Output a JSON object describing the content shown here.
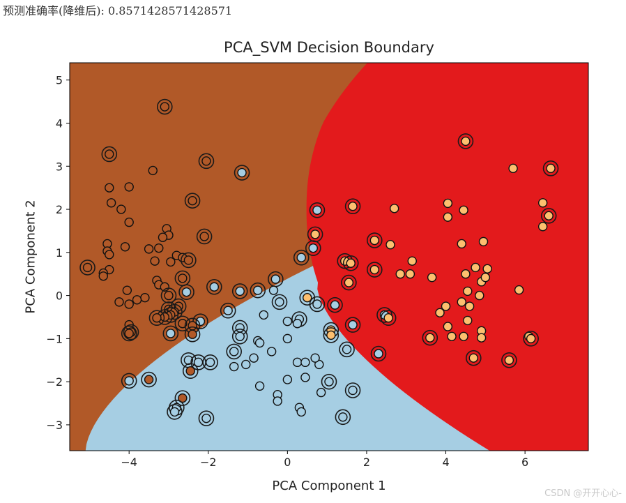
{
  "output": {
    "text": "预测准确率(降维后): 0.8571428571428571"
  },
  "watermark": {
    "text": "CSDN @开开心心-"
  },
  "chart_data": {
    "type": "scatter",
    "title": "PCA_SVM Decision Boundary",
    "xlabel": "PCA Component 1",
    "ylabel": "PCA Component 2",
    "xlim": [
      -5.5,
      7.6
    ],
    "ylim": [
      -3.6,
      5.4
    ],
    "xticks": [
      -4,
      -2,
      0,
      2,
      4,
      6
    ],
    "yticks": [
      -3,
      -2,
      -1,
      0,
      1,
      2,
      3,
      4,
      5
    ],
    "regions": [
      {
        "name": "class_0",
        "color": "#B15928"
      },
      {
        "name": "class_1",
        "color": "#A6CEE3"
      },
      {
        "name": "class_2",
        "color": "#E31A1C"
      }
    ],
    "point_colors": {
      "0": "#B15928",
      "1": "#A6CEE3",
      "2": "#FDBF6F"
    },
    "ring_color": "#1a1a1a",
    "points": [
      {
        "x": -3.1,
        "y": 4.38,
        "c": 0,
        "sv": true
      },
      {
        "x": -4.5,
        "y": 3.28,
        "c": 0,
        "sv": true
      },
      {
        "x": -3.4,
        "y": 2.9,
        "c": 0,
        "sv": false
      },
      {
        "x": -2.05,
        "y": 3.12,
        "c": 0,
        "sv": true
      },
      {
        "x": -4.5,
        "y": 2.5,
        "c": 0,
        "sv": false
      },
      {
        "x": -4.0,
        "y": 2.52,
        "c": 0,
        "sv": false
      },
      {
        "x": -2.4,
        "y": 2.2,
        "c": 0,
        "sv": true
      },
      {
        "x": -4.45,
        "y": 2.15,
        "c": 0,
        "sv": false
      },
      {
        "x": -4.2,
        "y": 2.0,
        "c": 0,
        "sv": false
      },
      {
        "x": -4.0,
        "y": 1.7,
        "c": 0,
        "sv": false
      },
      {
        "x": -3.05,
        "y": 1.55,
        "c": 0,
        "sv": false
      },
      {
        "x": -3.0,
        "y": 1.4,
        "c": 0,
        "sv": false
      },
      {
        "x": -3.15,
        "y": 1.35,
        "c": 0,
        "sv": false
      },
      {
        "x": -2.1,
        "y": 1.37,
        "c": 0,
        "sv": true
      },
      {
        "x": -4.55,
        "y": 1.2,
        "c": 0,
        "sv": false
      },
      {
        "x": -4.1,
        "y": 1.13,
        "c": 0,
        "sv": false
      },
      {
        "x": -3.5,
        "y": 1.08,
        "c": 0,
        "sv": false
      },
      {
        "x": -3.25,
        "y": 1.1,
        "c": 0,
        "sv": false
      },
      {
        "x": -4.55,
        "y": 1.03,
        "c": 0,
        "sv": false
      },
      {
        "x": -4.5,
        "y": 0.95,
        "c": 0,
        "sv": false
      },
      {
        "x": -2.8,
        "y": 0.93,
        "c": 0,
        "sv": false
      },
      {
        "x": -2.65,
        "y": 0.88,
        "c": 0,
        "sv": false
      },
      {
        "x": -2.5,
        "y": 0.82,
        "c": 0,
        "sv": true
      },
      {
        "x": -3.35,
        "y": 0.8,
        "c": 0,
        "sv": false
      },
      {
        "x": -2.95,
        "y": 0.78,
        "c": 0,
        "sv": false
      },
      {
        "x": -5.05,
        "y": 0.65,
        "c": 0,
        "sv": true
      },
      {
        "x": -4.5,
        "y": 0.6,
        "c": 0,
        "sv": false
      },
      {
        "x": -4.65,
        "y": 0.52,
        "c": 0,
        "sv": false
      },
      {
        "x": -4.65,
        "y": 0.45,
        "c": 0,
        "sv": false
      },
      {
        "x": -2.65,
        "y": 0.4,
        "c": 0,
        "sv": true
      },
      {
        "x": -3.3,
        "y": 0.35,
        "c": 0,
        "sv": false
      },
      {
        "x": -3.25,
        "y": 0.25,
        "c": 0,
        "sv": false
      },
      {
        "x": -3.1,
        "y": 0.2,
        "c": 0,
        "sv": false
      },
      {
        "x": -1.85,
        "y": 0.2,
        "c": 1,
        "sv": true
      },
      {
        "x": -4.05,
        "y": 0.12,
        "c": 0,
        "sv": false
      },
      {
        "x": -2.55,
        "y": 0.08,
        "c": 1,
        "sv": true
      },
      {
        "x": -3.0,
        "y": 0.0,
        "c": 0,
        "sv": true
      },
      {
        "x": -3.6,
        "y": -0.05,
        "c": 0,
        "sv": false
      },
      {
        "x": -3.8,
        "y": -0.1,
        "c": 0,
        "sv": false
      },
      {
        "x": -4.25,
        "y": -0.15,
        "c": 0,
        "sv": false
      },
      {
        "x": -4.0,
        "y": -0.2,
        "c": 0,
        "sv": false
      },
      {
        "x": -2.75,
        "y": -0.25,
        "c": 0,
        "sv": true
      },
      {
        "x": -3.0,
        "y": -0.32,
        "c": 0,
        "sv": true
      },
      {
        "x": -2.85,
        "y": -0.38,
        "c": 0,
        "sv": true
      },
      {
        "x": -2.95,
        "y": -0.45,
        "c": 0,
        "sv": true
      },
      {
        "x": -3.1,
        "y": -0.5,
        "c": 0,
        "sv": true
      },
      {
        "x": -3.3,
        "y": -0.52,
        "c": 0,
        "sv": true
      },
      {
        "x": -2.2,
        "y": -0.6,
        "c": 1,
        "sv": true
      },
      {
        "x": -2.65,
        "y": -0.65,
        "c": 0,
        "sv": true
      },
      {
        "x": -2.4,
        "y": -0.7,
        "c": 0,
        "sv": true
      },
      {
        "x": -4.0,
        "y": -0.68,
        "c": 0,
        "sv": false
      },
      {
        "x": -3.95,
        "y": -0.85,
        "c": 0,
        "sv": true
      },
      {
        "x": -4.0,
        "y": -0.88,
        "c": 0,
        "sv": true
      },
      {
        "x": -2.95,
        "y": -0.88,
        "c": 1,
        "sv": true
      },
      {
        "x": -2.4,
        "y": -0.9,
        "c": 0,
        "sv": true
      },
      {
        "x": -2.5,
        "y": -1.5,
        "c": 1,
        "sv": true
      },
      {
        "x": -2.25,
        "y": -1.55,
        "c": 1,
        "sv": true
      },
      {
        "x": -1.95,
        "y": -1.55,
        "c": 1,
        "sv": true
      },
      {
        "x": -2.45,
        "y": -1.75,
        "c": 0,
        "sv": true
      },
      {
        "x": -4.0,
        "y": -1.98,
        "c": 1,
        "sv": true
      },
      {
        "x": -3.5,
        "y": -1.95,
        "c": 0,
        "sv": true
      },
      {
        "x": -2.65,
        "y": -2.38,
        "c": 0,
        "sv": true
      },
      {
        "x": -2.8,
        "y": -2.6,
        "c": 1,
        "sv": true
      },
      {
        "x": -2.85,
        "y": -2.7,
        "c": 1,
        "sv": true
      },
      {
        "x": -2.05,
        "y": -2.85,
        "c": 1,
        "sv": true
      },
      {
        "x": -1.15,
        "y": 2.85,
        "c": 1,
        "sv": true
      },
      {
        "x": -0.3,
        "y": 0.38,
        "c": 1,
        "sv": true
      },
      {
        "x": -0.75,
        "y": 0.12,
        "c": 1,
        "sv": true
      },
      {
        "x": -1.2,
        "y": 0.1,
        "c": 1,
        "sv": true
      },
      {
        "x": -0.35,
        "y": 0.12,
        "c": 1,
        "sv": false
      },
      {
        "x": -0.2,
        "y": -0.15,
        "c": 1,
        "sv": true
      },
      {
        "x": -1.5,
        "y": -0.35,
        "c": 1,
        "sv": true
      },
      {
        "x": -0.6,
        "y": -0.45,
        "c": 1,
        "sv": false
      },
      {
        "x": 0.0,
        "y": -0.6,
        "c": 1,
        "sv": false
      },
      {
        "x": 0.3,
        "y": -0.55,
        "c": 1,
        "sv": true
      },
      {
        "x": 0.25,
        "y": -0.65,
        "c": 1,
        "sv": false
      },
      {
        "x": -1.2,
        "y": -0.75,
        "c": 1,
        "sv": true
      },
      {
        "x": -1.2,
        "y": -0.95,
        "c": 1,
        "sv": true
      },
      {
        "x": 0.0,
        "y": -1.0,
        "c": 1,
        "sv": false
      },
      {
        "x": -0.75,
        "y": -1.05,
        "c": 1,
        "sv": false
      },
      {
        "x": -0.7,
        "y": -1.1,
        "c": 1,
        "sv": false
      },
      {
        "x": -0.4,
        "y": -1.3,
        "c": 1,
        "sv": false
      },
      {
        "x": -1.35,
        "y": -1.3,
        "c": 1,
        "sv": true
      },
      {
        "x": -0.85,
        "y": -1.45,
        "c": 1,
        "sv": false
      },
      {
        "x": -1.05,
        "y": -1.6,
        "c": 1,
        "sv": false
      },
      {
        "x": -1.35,
        "y": -1.65,
        "c": 1,
        "sv": false
      },
      {
        "x": 0.25,
        "y": -1.55,
        "c": 1,
        "sv": false
      },
      {
        "x": 0.45,
        "y": -1.55,
        "c": 1,
        "sv": false
      },
      {
        "x": 0.8,
        "y": -1.6,
        "c": 1,
        "sv": false
      },
      {
        "x": 0.7,
        "y": -1.45,
        "c": 1,
        "sv": false
      },
      {
        "x": 0.45,
        "y": -1.9,
        "c": 1,
        "sv": false
      },
      {
        "x": 0.0,
        "y": -1.95,
        "c": 1,
        "sv": false
      },
      {
        "x": -0.7,
        "y": -2.1,
        "c": 1,
        "sv": false
      },
      {
        "x": -0.25,
        "y": -2.3,
        "c": 1,
        "sv": false
      },
      {
        "x": -0.25,
        "y": -2.45,
        "c": 1,
        "sv": false
      },
      {
        "x": 0.3,
        "y": -2.6,
        "c": 1,
        "sv": false
      },
      {
        "x": 0.35,
        "y": -2.7,
        "c": 1,
        "sv": false
      },
      {
        "x": 1.05,
        "y": -2.0,
        "c": 1,
        "sv": true
      },
      {
        "x": 0.85,
        "y": -2.25,
        "c": 1,
        "sv": false
      },
      {
        "x": 1.65,
        "y": -2.2,
        "c": 1,
        "sv": true
      },
      {
        "x": 1.4,
        "y": -2.82,
        "c": 1,
        "sv": true
      },
      {
        "x": 1.5,
        "y": -1.25,
        "c": 1,
        "sv": true
      },
      {
        "x": 2.3,
        "y": -1.35,
        "c": 1,
        "sv": true
      },
      {
        "x": 1.65,
        "y": -0.68,
        "c": 1,
        "sv": true
      },
      {
        "x": 1.1,
        "y": -0.8,
        "c": 2,
        "sv": true
      },
      {
        "x": 1.1,
        "y": -0.92,
        "c": 2,
        "sv": true
      },
      {
        "x": 0.5,
        "y": -0.05,
        "c": 2,
        "sv": true
      },
      {
        "x": 0.75,
        "y": -0.2,
        "c": 1,
        "sv": true
      },
      {
        "x": 1.2,
        "y": -0.22,
        "c": 1,
        "sv": true
      },
      {
        "x": 0.35,
        "y": 0.88,
        "c": 1,
        "sv": true
      },
      {
        "x": 0.65,
        "y": 1.1,
        "c": 1,
        "sv": true
      },
      {
        "x": 0.7,
        "y": 1.42,
        "c": 2,
        "sv": true
      },
      {
        "x": 0.75,
        "y": 1.98,
        "c": 1,
        "sv": true
      },
      {
        "x": 1.45,
        "y": 0.8,
        "c": 2,
        "sv": true
      },
      {
        "x": 1.6,
        "y": 0.75,
        "c": 2,
        "sv": true
      },
      {
        "x": 1.55,
        "y": 0.3,
        "c": 2,
        "sv": true
      },
      {
        "x": 1.65,
        "y": 2.07,
        "c": 2,
        "sv": true
      },
      {
        "x": 2.2,
        "y": 1.28,
        "c": 2,
        "sv": true
      },
      {
        "x": 2.2,
        "y": 0.6,
        "c": 2,
        "sv": true
      },
      {
        "x": 2.45,
        "y": -0.45,
        "c": 1,
        "sv": true
      },
      {
        "x": 2.55,
        "y": -0.52,
        "c": 2,
        "sv": true
      },
      {
        "x": 2.7,
        "y": 2.02,
        "c": 2,
        "sv": false
      },
      {
        "x": 2.6,
        "y": 1.18,
        "c": 2,
        "sv": false
      },
      {
        "x": 3.15,
        "y": 0.8,
        "c": 2,
        "sv": false
      },
      {
        "x": 2.85,
        "y": 0.5,
        "c": 2,
        "sv": false
      },
      {
        "x": 3.1,
        "y": 0.5,
        "c": 2,
        "sv": false
      },
      {
        "x": 3.65,
        "y": 0.42,
        "c": 2,
        "sv": false
      },
      {
        "x": 3.85,
        "y": -0.4,
        "c": 2,
        "sv": false
      },
      {
        "x": 4.0,
        "y": -0.25,
        "c": 2,
        "sv": false
      },
      {
        "x": 3.6,
        "y": -0.98,
        "c": 2,
        "sv": true
      },
      {
        "x": 4.05,
        "y": -0.72,
        "c": 2,
        "sv": false
      },
      {
        "x": 4.15,
        "y": -0.95,
        "c": 2,
        "sv": false
      },
      {
        "x": 4.5,
        "y": 3.58,
        "c": 2,
        "sv": true
      },
      {
        "x": 4.05,
        "y": 2.14,
        "c": 2,
        "sv": false
      },
      {
        "x": 4.45,
        "y": 1.98,
        "c": 2,
        "sv": false
      },
      {
        "x": 4.05,
        "y": 1.82,
        "c": 2,
        "sv": false
      },
      {
        "x": 4.4,
        "y": 1.2,
        "c": 2,
        "sv": false
      },
      {
        "x": 4.5,
        "y": 0.5,
        "c": 2,
        "sv": false
      },
      {
        "x": 4.55,
        "y": 0.1,
        "c": 2,
        "sv": false
      },
      {
        "x": 4.6,
        "y": -0.25,
        "c": 2,
        "sv": false
      },
      {
        "x": 4.4,
        "y": -0.15,
        "c": 2,
        "sv": false
      },
      {
        "x": 4.55,
        "y": -0.58,
        "c": 2,
        "sv": false
      },
      {
        "x": 4.45,
        "y": -0.95,
        "c": 2,
        "sv": false
      },
      {
        "x": 4.7,
        "y": -1.45,
        "c": 2,
        "sv": true
      },
      {
        "x": 4.75,
        "y": 0.65,
        "c": 2,
        "sv": false
      },
      {
        "x": 4.95,
        "y": 1.25,
        "c": 2,
        "sv": false
      },
      {
        "x": 4.9,
        "y": 0.32,
        "c": 2,
        "sv": false
      },
      {
        "x": 4.85,
        "y": 0.0,
        "c": 2,
        "sv": false
      },
      {
        "x": 4.9,
        "y": -0.82,
        "c": 2,
        "sv": false
      },
      {
        "x": 4.9,
        "y": -0.98,
        "c": 2,
        "sv": false
      },
      {
        "x": 5.05,
        "y": 0.62,
        "c": 2,
        "sv": false
      },
      {
        "x": 5.0,
        "y": 0.42,
        "c": 2,
        "sv": false
      },
      {
        "x": 5.6,
        "y": -1.5,
        "c": 2,
        "sv": true
      },
      {
        "x": 5.7,
        "y": 2.95,
        "c": 2,
        "sv": false
      },
      {
        "x": 5.85,
        "y": 0.13,
        "c": 2,
        "sv": false
      },
      {
        "x": 6.45,
        "y": 2.15,
        "c": 2,
        "sv": false
      },
      {
        "x": 6.45,
        "y": 1.6,
        "c": 2,
        "sv": false
      },
      {
        "x": 6.6,
        "y": 1.85,
        "c": 2,
        "sv": true
      },
      {
        "x": 6.65,
        "y": 2.95,
        "c": 2,
        "sv": true
      },
      {
        "x": 6.1,
        "y": -0.95,
        "c": 2,
        "sv": false
      },
      {
        "x": 6.15,
        "y": -1.0,
        "c": 2,
        "sv": true
      }
    ]
  }
}
